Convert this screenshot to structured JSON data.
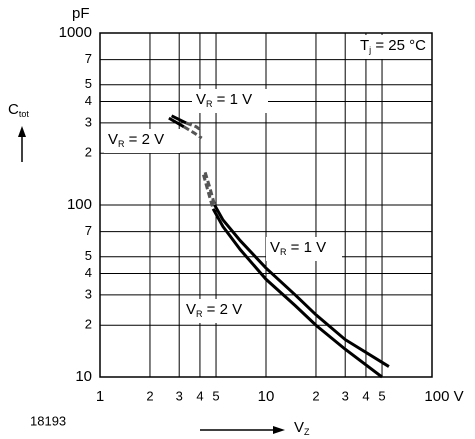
{
  "chart_data": {
    "type": "line",
    "y_unit": "pF",
    "y_label": {
      "main": "C",
      "sub": "tot"
    },
    "x_label": {
      "main": "V",
      "sub": "Z"
    },
    "figure_id": "18193",
    "condition": {
      "main": "T",
      "sub": "j",
      "rest": " = 25 °C"
    },
    "annotations": [
      {
        "main": "V",
        "sub": "R",
        "rest": " = 1 V"
      },
      {
        "main": "V",
        "sub": "R",
        "rest": " = 2 V"
      },
      {
        "main": "V",
        "sub": "R",
        "rest": " = 1 V"
      },
      {
        "main": "V",
        "sub": "R",
        "rest": " = 2 V"
      }
    ],
    "log_x": true,
    "log_y": true,
    "grid": true,
    "xlim": [
      1,
      100
    ],
    "ylim": [
      10,
      1000
    ],
    "xticks": [
      1,
      {
        "value": 2,
        "label": "2"
      },
      {
        "value": 3,
        "label": "3"
      },
      {
        "value": 4,
        "label": "4"
      },
      {
        "value": 5,
        "label": "5"
      },
      10,
      {
        "value": 20,
        "label": "2"
      },
      {
        "value": 30,
        "label": "3"
      },
      {
        "value": 40,
        "label": "4"
      },
      {
        "value": 50,
        "label": "5"
      },
      {
        "value": 100,
        "label": "100 V"
      }
    ],
    "yticks": [
      10,
      {
        "value": 20,
        "label": "2"
      },
      {
        "value": 30,
        "label": "3"
      },
      {
        "value": 40,
        "label": "4"
      },
      {
        "value": 50,
        "label": "5"
      },
      {
        "value": 70,
        "label": "7"
      },
      100,
      {
        "value": 200,
        "label": "2"
      },
      {
        "value": 300,
        "label": "3"
      },
      {
        "value": 400,
        "label": "4"
      },
      {
        "value": 500,
        "label": "5"
      },
      {
        "value": 700,
        "label": "7"
      },
      1000
    ],
    "series": [
      {
        "color": "#000000",
        "dashed": false,
        "x": [
          2.7,
          3.3
        ],
        "values": [
          330,
          300
        ]
      },
      {
        "color": "#555555",
        "dashed": true,
        "x": [
          3.3,
          3.8,
          4.1
        ],
        "values": [
          300,
          285,
          270
        ]
      },
      {
        "color": "#000000",
        "dashed": false,
        "x": [
          2.6,
          3.2
        ],
        "values": [
          320,
          285
        ]
      },
      {
        "color": "#555555",
        "dashed": true,
        "x": [
          3.2,
          3.7,
          4.1
        ],
        "values": [
          285,
          262,
          245
        ]
      },
      {
        "color": "#555555",
        "dashed": true,
        "x": [
          4.3,
          4.6,
          4.9
        ],
        "values": [
          155,
          125,
          100
        ]
      },
      {
        "color": "#000000",
        "dashed": false,
        "x": [
          4.9,
          5.5,
          7,
          10,
          15,
          20,
          30,
          55
        ],
        "values": [
          100,
          82,
          62,
          43,
          30,
          23,
          16.5,
          11.5
        ]
      },
      {
        "color": "#555555",
        "dashed": true,
        "x": [
          4.2,
          4.5,
          4.8
        ],
        "values": [
          150,
          118,
          95
        ]
      },
      {
        "color": "#000000",
        "dashed": false,
        "x": [
          4.8,
          5.5,
          7,
          10,
          15,
          20,
          30,
          50
        ],
        "values": [
          95,
          75,
          55,
          37,
          26,
          20,
          14.5,
          10
        ]
      }
    ]
  }
}
